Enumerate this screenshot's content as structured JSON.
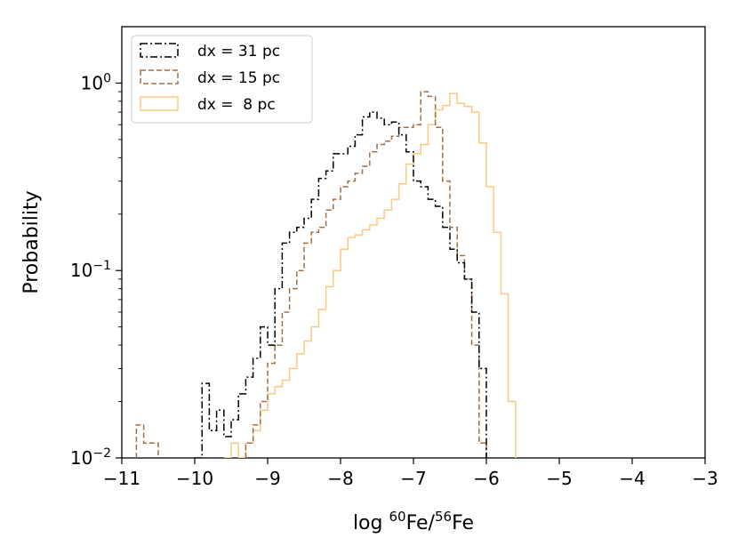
{
  "chart_data": {
    "type": "histogram",
    "xlabel": {
      "prefix": "log ",
      "sup1": "60",
      "mid": "Fe/",
      "sup2": "56",
      "suffix": "Fe"
    },
    "ylabel": "Probability",
    "xlim": [
      -11,
      -3
    ],
    "ylim": [
      0.01,
      2
    ],
    "yscale": "log",
    "grid": false,
    "legend_position": "top-left",
    "x_ticks": [
      {
        "value": -11,
        "label": "−11"
      },
      {
        "value": -10,
        "label": "−10"
      },
      {
        "value": -9,
        "label": "−9"
      },
      {
        "value": -8,
        "label": "−8"
      },
      {
        "value": -7,
        "label": "−7"
      },
      {
        "value": -6,
        "label": "−6"
      },
      {
        "value": -5,
        "label": "−5"
      },
      {
        "value": -4,
        "label": "−4"
      },
      {
        "value": -3,
        "label": "−3"
      }
    ],
    "y_ticks": [
      {
        "value": 0.01,
        "base": "10",
        "exp": "−2"
      },
      {
        "value": 0.1,
        "base": "10",
        "exp": "−1"
      },
      {
        "value": 1,
        "base": "10",
        "exp": "0"
      }
    ],
    "series": [
      {
        "name": "dx = 31 pc",
        "color": "#000000",
        "dash": "dashdot",
        "points": [
          [
            -9.95,
            0.01
          ],
          [
            -9.85,
            0.025
          ],
          [
            -9.75,
            0.014
          ],
          [
            -9.65,
            0.018
          ],
          [
            -9.55,
            0.013
          ],
          [
            -9.45,
            0.016
          ],
          [
            -9.35,
            0.022
          ],
          [
            -9.25,
            0.027
          ],
          [
            -9.15,
            0.034
          ],
          [
            -9.05,
            0.05
          ],
          [
            -8.95,
            0.04
          ],
          [
            -8.85,
            0.08
          ],
          [
            -8.75,
            0.14
          ],
          [
            -8.65,
            0.16
          ],
          [
            -8.55,
            0.17
          ],
          [
            -8.45,
            0.19
          ],
          [
            -8.35,
            0.24
          ],
          [
            -8.25,
            0.31
          ],
          [
            -8.15,
            0.34
          ],
          [
            -8.05,
            0.42
          ],
          [
            -7.95,
            0.42
          ],
          [
            -7.85,
            0.46
          ],
          [
            -7.75,
            0.53
          ],
          [
            -7.65,
            0.66
          ],
          [
            -7.55,
            0.7
          ],
          [
            -7.45,
            0.65
          ],
          [
            -7.35,
            0.6
          ],
          [
            -7.25,
            0.62
          ],
          [
            -7.15,
            0.53
          ],
          [
            -7.05,
            0.43
          ],
          [
            -6.95,
            0.3
          ],
          [
            -6.85,
            0.28
          ],
          [
            -6.75,
            0.24
          ],
          [
            -6.65,
            0.22
          ],
          [
            -6.55,
            0.17
          ],
          [
            -6.45,
            0.13
          ],
          [
            -6.35,
            0.11
          ],
          [
            -6.25,
            0.09
          ],
          [
            -6.15,
            0.06
          ],
          [
            -6.05,
            0.03
          ]
        ]
      },
      {
        "name": "dx = 15 pc",
        "color": "#a0704a",
        "dash": "dashed",
        "points": [
          [
            -10.75,
            0.015
          ],
          [
            -10.65,
            0.012
          ],
          [
            -10.55,
            0.012
          ],
          [
            -9.25,
            0.012
          ],
          [
            -9.15,
            0.015
          ],
          [
            -9.05,
            0.02
          ],
          [
            -8.95,
            0.032
          ],
          [
            -8.85,
            0.04
          ],
          [
            -8.75,
            0.06
          ],
          [
            -8.65,
            0.08
          ],
          [
            -8.55,
            0.1
          ],
          [
            -8.45,
            0.14
          ],
          [
            -8.35,
            0.16
          ],
          [
            -8.25,
            0.17
          ],
          [
            -8.15,
            0.21
          ],
          [
            -8.05,
            0.24
          ],
          [
            -7.95,
            0.28
          ],
          [
            -7.85,
            0.3
          ],
          [
            -7.75,
            0.33
          ],
          [
            -7.65,
            0.36
          ],
          [
            -7.55,
            0.43
          ],
          [
            -7.45,
            0.47
          ],
          [
            -7.35,
            0.49
          ],
          [
            -7.25,
            0.52
          ],
          [
            -7.15,
            0.58
          ],
          [
            -7.05,
            0.58
          ],
          [
            -6.95,
            0.6
          ],
          [
            -6.85,
            0.9
          ],
          [
            -6.75,
            0.85
          ],
          [
            -6.65,
            0.58
          ],
          [
            -6.55,
            0.3
          ],
          [
            -6.45,
            0.17
          ],
          [
            -6.35,
            0.12
          ],
          [
            -6.25,
            0.09
          ],
          [
            -6.15,
            0.04
          ],
          [
            -6.05,
            0.012
          ]
        ]
      },
      {
        "name": "dx =  8 pc",
        "color": "#fbc980",
        "dash": "solid",
        "points": [
          [
            -9.55,
            0.01
          ],
          [
            -9.45,
            0.012
          ],
          [
            -9.35,
            0.01
          ],
          [
            -9.25,
            0.012
          ],
          [
            -9.15,
            0.014
          ],
          [
            -9.05,
            0.018
          ],
          [
            -8.95,
            0.022
          ],
          [
            -8.85,
            0.024
          ],
          [
            -8.75,
            0.026
          ],
          [
            -8.65,
            0.03
          ],
          [
            -8.55,
            0.036
          ],
          [
            -8.45,
            0.042
          ],
          [
            -8.35,
            0.05
          ],
          [
            -8.25,
            0.062
          ],
          [
            -8.15,
            0.082
          ],
          [
            -8.05,
            0.1
          ],
          [
            -7.95,
            0.13
          ],
          [
            -7.85,
            0.15
          ],
          [
            -7.75,
            0.155
          ],
          [
            -7.65,
            0.165
          ],
          [
            -7.55,
            0.175
          ],
          [
            -7.45,
            0.19
          ],
          [
            -7.35,
            0.21
          ],
          [
            -7.25,
            0.24
          ],
          [
            -7.15,
            0.29
          ],
          [
            -7.05,
            0.37
          ],
          [
            -6.95,
            0.42
          ],
          [
            -6.85,
            0.47
          ],
          [
            -6.75,
            0.6
          ],
          [
            -6.65,
            0.72
          ],
          [
            -6.55,
            0.76
          ],
          [
            -6.45,
            0.88
          ],
          [
            -6.35,
            0.78
          ],
          [
            -6.25,
            0.75
          ],
          [
            -6.15,
            0.7
          ],
          [
            -6.05,
            0.48
          ],
          [
            -5.95,
            0.28
          ],
          [
            -5.85,
            0.16
          ],
          [
            -5.75,
            0.075
          ],
          [
            -5.65,
            0.02
          ]
        ]
      }
    ]
  }
}
